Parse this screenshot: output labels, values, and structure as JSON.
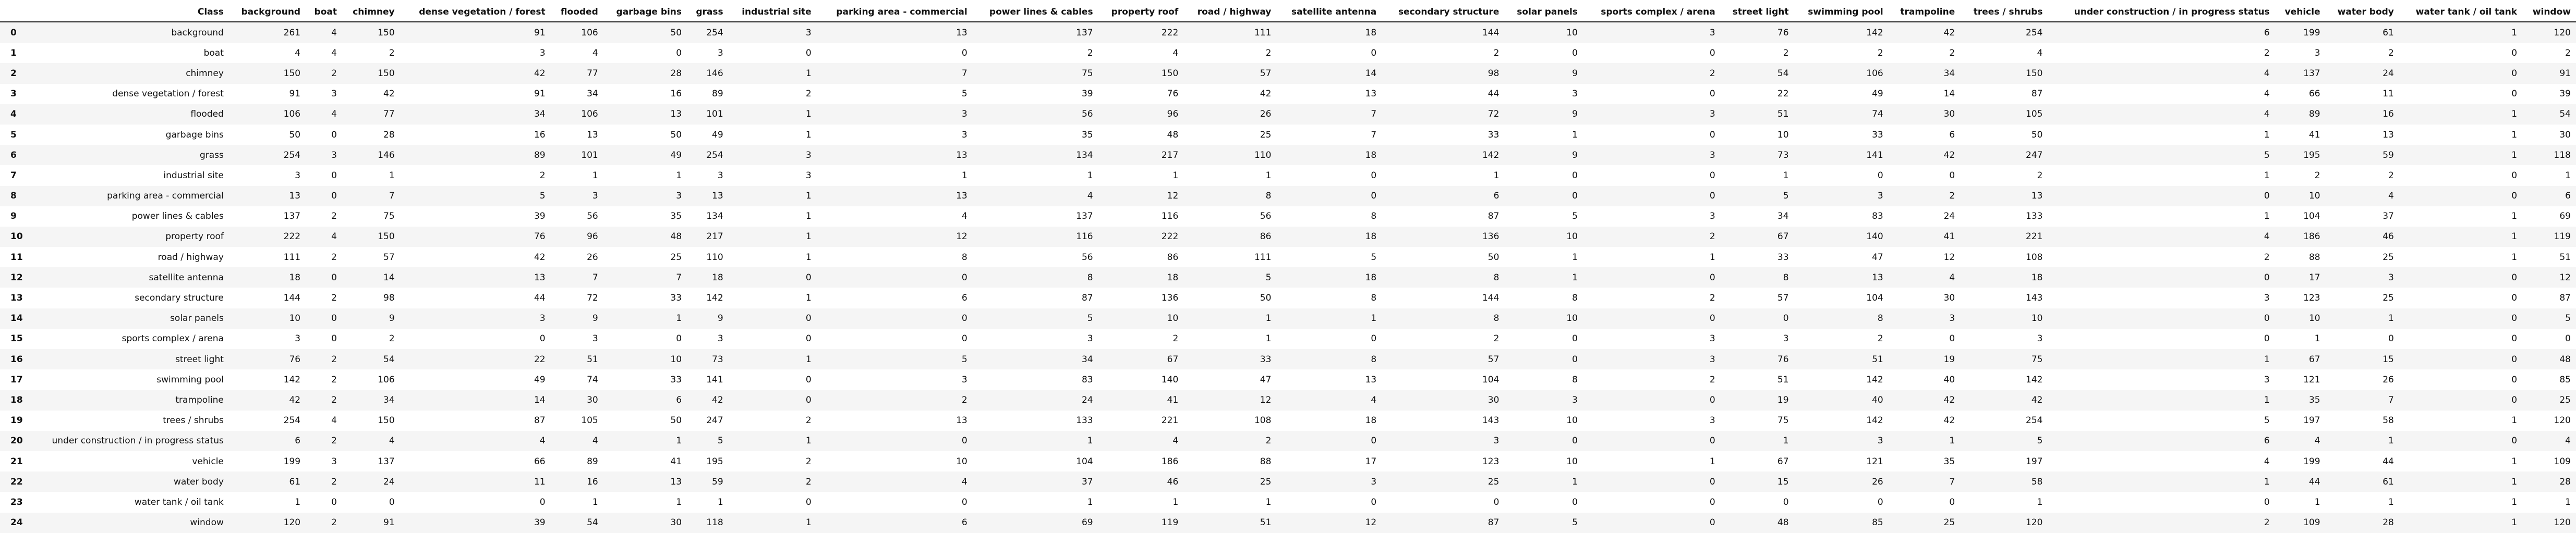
{
  "table": {
    "columns": [
      "Class",
      "background",
      "boat",
      "chimney",
      "dense vegetation / forest",
      "flooded",
      "garbage bins",
      "grass",
      "industrial site",
      "parking area - commercial",
      "power lines & cables",
      "property roof",
      "road / highway",
      "satellite antenna",
      "secondary structure",
      "solar panels",
      "sports complex / arena",
      "street light",
      "swimming pool",
      "trampoline",
      "trees / shrubs",
      "under construction / in progress status",
      "vehicle",
      "water body",
      "water tank / oil tank",
      "window"
    ],
    "rows": [
      {
        "index": "0",
        "cells": [
          "background",
          "261",
          "4",
          "150",
          "91",
          "106",
          "50",
          "254",
          "3",
          "13",
          "137",
          "222",
          "111",
          "18",
          "144",
          "10",
          "3",
          "76",
          "142",
          "42",
          "254",
          "6",
          "199",
          "61",
          "1",
          "120"
        ]
      },
      {
        "index": "1",
        "cells": [
          "boat",
          "4",
          "4",
          "2",
          "3",
          "4",
          "0",
          "3",
          "0",
          "0",
          "2",
          "4",
          "2",
          "0",
          "2",
          "0",
          "0",
          "2",
          "2",
          "2",
          "4",
          "2",
          "3",
          "2",
          "0",
          "2"
        ]
      },
      {
        "index": "2",
        "cells": [
          "chimney",
          "150",
          "2",
          "150",
          "42",
          "77",
          "28",
          "146",
          "1",
          "7",
          "75",
          "150",
          "57",
          "14",
          "98",
          "9",
          "2",
          "54",
          "106",
          "34",
          "150",
          "4",
          "137",
          "24",
          "0",
          "91"
        ]
      },
      {
        "index": "3",
        "cells": [
          "dense vegetation / forest",
          "91",
          "3",
          "42",
          "91",
          "34",
          "16",
          "89",
          "2",
          "5",
          "39",
          "76",
          "42",
          "13",
          "44",
          "3",
          "0",
          "22",
          "49",
          "14",
          "87",
          "4",
          "66",
          "11",
          "0",
          "39"
        ]
      },
      {
        "index": "4",
        "cells": [
          "flooded",
          "106",
          "4",
          "77",
          "34",
          "106",
          "13",
          "101",
          "1",
          "3",
          "56",
          "96",
          "26",
          "7",
          "72",
          "9",
          "3",
          "51",
          "74",
          "30",
          "105",
          "4",
          "89",
          "16",
          "1",
          "54"
        ]
      },
      {
        "index": "5",
        "cells": [
          "garbage bins",
          "50",
          "0",
          "28",
          "16",
          "13",
          "50",
          "49",
          "1",
          "3",
          "35",
          "48",
          "25",
          "7",
          "33",
          "1",
          "0",
          "10",
          "33",
          "6",
          "50",
          "1",
          "41",
          "13",
          "1",
          "30"
        ]
      },
      {
        "index": "6",
        "cells": [
          "grass",
          "254",
          "3",
          "146",
          "89",
          "101",
          "49",
          "254",
          "3",
          "13",
          "134",
          "217",
          "110",
          "18",
          "142",
          "9",
          "3",
          "73",
          "141",
          "42",
          "247",
          "5",
          "195",
          "59",
          "1",
          "118"
        ]
      },
      {
        "index": "7",
        "cells": [
          "industrial site",
          "3",
          "0",
          "1",
          "2",
          "1",
          "1",
          "3",
          "3",
          "1",
          "1",
          "1",
          "1",
          "0",
          "1",
          "0",
          "0",
          "1",
          "0",
          "0",
          "2",
          "1",
          "2",
          "2",
          "0",
          "1"
        ]
      },
      {
        "index": "8",
        "cells": [
          "parking area - commercial",
          "13",
          "0",
          "7",
          "5",
          "3",
          "3",
          "13",
          "1",
          "13",
          "4",
          "12",
          "8",
          "0",
          "6",
          "0",
          "0",
          "5",
          "3",
          "2",
          "13",
          "0",
          "10",
          "4",
          "0",
          "6"
        ]
      },
      {
        "index": "9",
        "cells": [
          "power lines & cables",
          "137",
          "2",
          "75",
          "39",
          "56",
          "35",
          "134",
          "1",
          "4",
          "137",
          "116",
          "56",
          "8",
          "87",
          "5",
          "3",
          "34",
          "83",
          "24",
          "133",
          "1",
          "104",
          "37",
          "1",
          "69"
        ]
      },
      {
        "index": "10",
        "cells": [
          "property roof",
          "222",
          "4",
          "150",
          "76",
          "96",
          "48",
          "217",
          "1",
          "12",
          "116",
          "222",
          "86",
          "18",
          "136",
          "10",
          "2",
          "67",
          "140",
          "41",
          "221",
          "4",
          "186",
          "46",
          "1",
          "119"
        ]
      },
      {
        "index": "11",
        "cells": [
          "road / highway",
          "111",
          "2",
          "57",
          "42",
          "26",
          "25",
          "110",
          "1",
          "8",
          "56",
          "86",
          "111",
          "5",
          "50",
          "1",
          "1",
          "33",
          "47",
          "12",
          "108",
          "2",
          "88",
          "25",
          "1",
          "51"
        ]
      },
      {
        "index": "12",
        "cells": [
          "satellite antenna",
          "18",
          "0",
          "14",
          "13",
          "7",
          "7",
          "18",
          "0",
          "0",
          "8",
          "18",
          "5",
          "18",
          "8",
          "1",
          "0",
          "8",
          "13",
          "4",
          "18",
          "0",
          "17",
          "3",
          "0",
          "12"
        ]
      },
      {
        "index": "13",
        "cells": [
          "secondary structure",
          "144",
          "2",
          "98",
          "44",
          "72",
          "33",
          "142",
          "1",
          "6",
          "87",
          "136",
          "50",
          "8",
          "144",
          "8",
          "2",
          "57",
          "104",
          "30",
          "143",
          "3",
          "123",
          "25",
          "0",
          "87"
        ]
      },
      {
        "index": "14",
        "cells": [
          "solar panels",
          "10",
          "0",
          "9",
          "3",
          "9",
          "1",
          "9",
          "0",
          "0",
          "5",
          "10",
          "1",
          "1",
          "8",
          "10",
          "0",
          "0",
          "8",
          "3",
          "10",
          "0",
          "10",
          "1",
          "0",
          "5"
        ]
      },
      {
        "index": "15",
        "cells": [
          "sports complex / arena",
          "3",
          "0",
          "2",
          "0",
          "3",
          "0",
          "3",
          "0",
          "0",
          "3",
          "2",
          "1",
          "0",
          "2",
          "0",
          "3",
          "3",
          "2",
          "0",
          "3",
          "0",
          "1",
          "0",
          "0",
          "0"
        ]
      },
      {
        "index": "16",
        "cells": [
          "street light",
          "76",
          "2",
          "54",
          "22",
          "51",
          "10",
          "73",
          "1",
          "5",
          "34",
          "67",
          "33",
          "8",
          "57",
          "0",
          "3",
          "76",
          "51",
          "19",
          "75",
          "1",
          "67",
          "15",
          "0",
          "48"
        ]
      },
      {
        "index": "17",
        "cells": [
          "swimming pool",
          "142",
          "2",
          "106",
          "49",
          "74",
          "33",
          "141",
          "0",
          "3",
          "83",
          "140",
          "47",
          "13",
          "104",
          "8",
          "2",
          "51",
          "142",
          "40",
          "142",
          "3",
          "121",
          "26",
          "0",
          "85"
        ]
      },
      {
        "index": "18",
        "cells": [
          "trampoline",
          "42",
          "2",
          "34",
          "14",
          "30",
          "6",
          "42",
          "0",
          "2",
          "24",
          "41",
          "12",
          "4",
          "30",
          "3",
          "0",
          "19",
          "40",
          "42",
          "42",
          "1",
          "35",
          "7",
          "0",
          "25"
        ]
      },
      {
        "index": "19",
        "cells": [
          "trees / shrubs",
          "254",
          "4",
          "150",
          "87",
          "105",
          "50",
          "247",
          "2",
          "13",
          "133",
          "221",
          "108",
          "18",
          "143",
          "10",
          "3",
          "75",
          "142",
          "42",
          "254",
          "5",
          "197",
          "58",
          "1",
          "120"
        ]
      },
      {
        "index": "20",
        "cells": [
          "under construction / in progress status",
          "6",
          "2",
          "4",
          "4",
          "4",
          "1",
          "5",
          "1",
          "0",
          "1",
          "4",
          "2",
          "0",
          "3",
          "0",
          "0",
          "1",
          "3",
          "1",
          "5",
          "6",
          "4",
          "1",
          "0",
          "4"
        ]
      },
      {
        "index": "21",
        "cells": [
          "vehicle",
          "199",
          "3",
          "137",
          "66",
          "89",
          "41",
          "195",
          "2",
          "10",
          "104",
          "186",
          "88",
          "17",
          "123",
          "10",
          "1",
          "67",
          "121",
          "35",
          "197",
          "4",
          "199",
          "44",
          "1",
          "109"
        ]
      },
      {
        "index": "22",
        "cells": [
          "water body",
          "61",
          "2",
          "24",
          "11",
          "16",
          "13",
          "59",
          "2",
          "4",
          "37",
          "46",
          "25",
          "3",
          "25",
          "1",
          "0",
          "15",
          "26",
          "7",
          "58",
          "1",
          "44",
          "61",
          "1",
          "28"
        ]
      },
      {
        "index": "23",
        "cells": [
          "water tank / oil tank",
          "1",
          "0",
          "0",
          "0",
          "1",
          "1",
          "1",
          "0",
          "0",
          "1",
          "1",
          "1",
          "0",
          "0",
          "0",
          "0",
          "0",
          "0",
          "0",
          "1",
          "0",
          "1",
          "1",
          "1",
          "1"
        ]
      },
      {
        "index": "24",
        "cells": [
          "window",
          "120",
          "2",
          "91",
          "39",
          "54",
          "30",
          "118",
          "1",
          "6",
          "69",
          "119",
          "51",
          "12",
          "87",
          "5",
          "0",
          "48",
          "85",
          "25",
          "120",
          "2",
          "109",
          "28",
          "1",
          "120"
        ]
      }
    ]
  }
}
